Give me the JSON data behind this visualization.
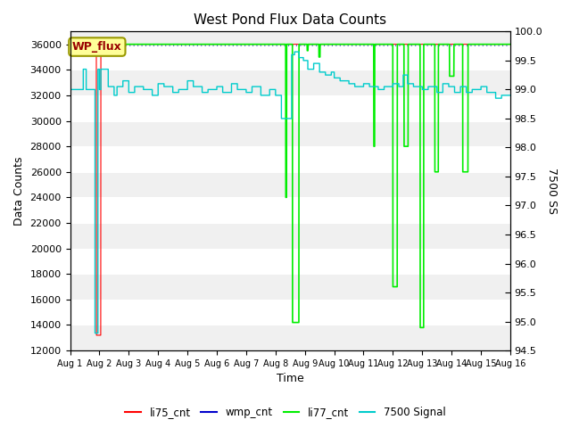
{
  "title": "West Pond Flux Data Counts",
  "xlabel": "Time",
  "ylabel_left": "Data Counts",
  "ylabel_right": "7500 SS",
  "ylim_left": [
    12000,
    37000
  ],
  "ylim_right": [
    94.5,
    100.0
  ],
  "yticks_left": [
    12000,
    14000,
    16000,
    18000,
    20000,
    22000,
    24000,
    26000,
    28000,
    30000,
    32000,
    34000,
    36000
  ],
  "yticks_right": [
    94.5,
    95.0,
    95.5,
    96.0,
    96.5,
    97.0,
    97.5,
    98.0,
    98.5,
    99.0,
    99.5,
    100.0
  ],
  "xtick_labels": [
    "Aug 1",
    "Aug 2",
    "Aug 3",
    "Aug 4",
    "Aug 5",
    "Aug 6",
    "Aug 7",
    "Aug 8",
    "Aug 9",
    "Aug 10",
    "Aug 11",
    "Aug 12",
    "Aug 13",
    "Aug 14",
    "Aug 15",
    "Aug 16"
  ],
  "bg_color_light": "#f0f0f0",
  "bg_color_dark": "#dcdcdc",
  "box_color": "#ffff99",
  "box_text": "WP_flux",
  "box_text_color": "#990000",
  "box_edge_color": "#999900",
  "legend_items": [
    "li75_cnt",
    "wmp_cnt",
    "li77_cnt",
    "7500 Signal"
  ],
  "legend_colors": [
    "#ff0000",
    "#0000cc",
    "#00ee00",
    "#00cccc"
  ],
  "figsize": [
    6.4,
    4.8
  ],
  "dpi": 100
}
